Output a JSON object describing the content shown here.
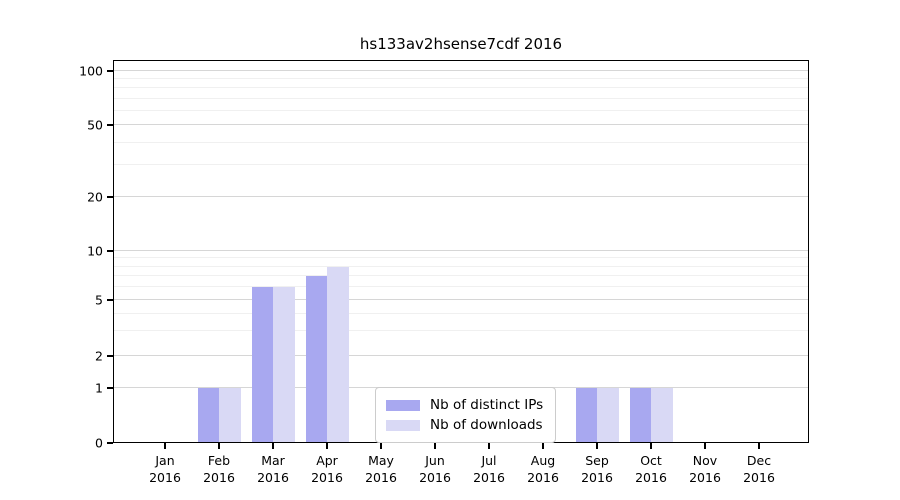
{
  "chart_data": {
    "type": "bar",
    "title": "hs133av2hsense7cdf 2016",
    "x_ticks": [
      {
        "month": "Jan",
        "year": "2016"
      },
      {
        "month": "Feb",
        "year": "2016"
      },
      {
        "month": "Mar",
        "year": "2016"
      },
      {
        "month": "Apr",
        "year": "2016"
      },
      {
        "month": "May",
        "year": "2016"
      },
      {
        "month": "Jun",
        "year": "2016"
      },
      {
        "month": "Jul",
        "year": "2016"
      },
      {
        "month": "Aug",
        "year": "2016"
      },
      {
        "month": "Sep",
        "year": "2016"
      },
      {
        "month": "Oct",
        "year": "2016"
      },
      {
        "month": "Nov",
        "year": "2016"
      },
      {
        "month": "Dec",
        "year": "2016"
      }
    ],
    "y_ticks": [
      100,
      50,
      20,
      10,
      5,
      2,
      1,
      0
    ],
    "y_minor_ticks": [
      3,
      4,
      6,
      7,
      8,
      9,
      30,
      40,
      60,
      70,
      80,
      90
    ],
    "yscale": "log-like (linear segment between 0 and 1)",
    "ylim": [
      0,
      110
    ],
    "grid": "horizontal major and minor gridlines",
    "legend_position": "lower center",
    "series": [
      {
        "name": "Nb of distinct IPs",
        "color": "#a8a8f0",
        "values": [
          0,
          1,
          6,
          7,
          0,
          0,
          0,
          0,
          1,
          1,
          0,
          0
        ]
      },
      {
        "name": "Nb of downloads",
        "color": "#d9d9f5",
        "values": [
          0,
          1,
          6,
          8,
          0,
          0,
          0,
          0,
          1,
          1,
          0,
          0
        ]
      }
    ]
  }
}
